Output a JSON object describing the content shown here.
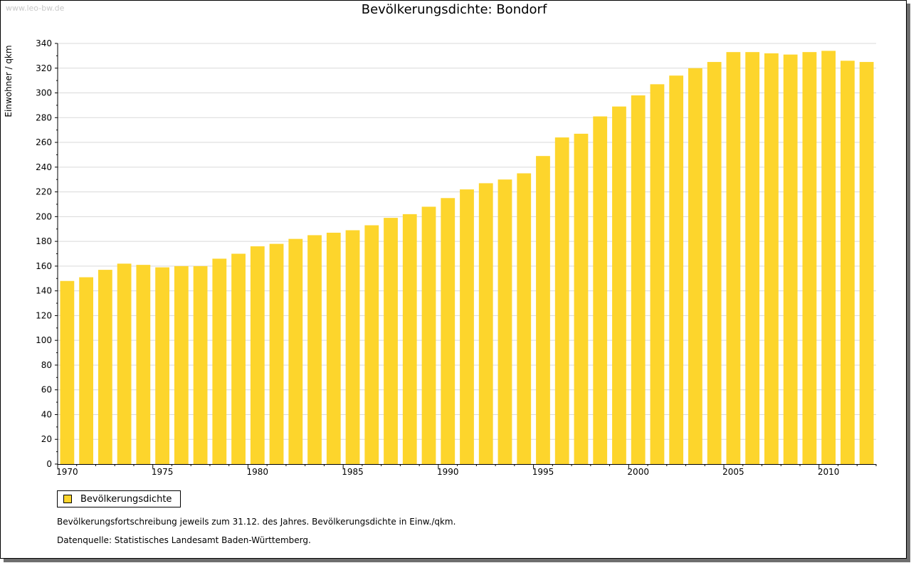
{
  "watermark": "www.leo-bw.de",
  "legend": {
    "label": "Bevölkerungsdichte"
  },
  "notes": [
    "Bevölkerungsfortschreibung jeweils zum 31.12. des Jahres. Bevölkerungsdichte in Einw./qkm.",
    "Datenquelle: Statistisches Landesamt Baden-Württemberg."
  ],
  "chart_data": {
    "type": "bar",
    "title": "Bevölkerungsdichte: Bondorf",
    "xlabel": "",
    "ylabel": "Einwohner / qkm",
    "ylim": [
      0,
      340
    ],
    "yticks": [
      0,
      20,
      40,
      60,
      80,
      100,
      120,
      140,
      160,
      180,
      200,
      220,
      240,
      260,
      280,
      300,
      320,
      340
    ],
    "xtick_labels": [
      "1970",
      "1975",
      "1980",
      "1985",
      "1990",
      "1995",
      "2000",
      "2005",
      "2010"
    ],
    "categories": [
      1970,
      1971,
      1972,
      1973,
      1974,
      1975,
      1976,
      1977,
      1978,
      1979,
      1980,
      1981,
      1982,
      1983,
      1984,
      1985,
      1986,
      1987,
      1988,
      1989,
      1990,
      1991,
      1992,
      1993,
      1994,
      1995,
      1996,
      1997,
      1998,
      1999,
      2000,
      2001,
      2002,
      2003,
      2004,
      2005,
      2006,
      2007,
      2008,
      2009,
      2010,
      2011,
      2012
    ],
    "series": [
      {
        "name": "Bevölkerungsdichte",
        "color": "#fdd52c",
        "values": [
          148,
          151,
          157,
          162,
          161,
          159,
          160,
          160,
          166,
          170,
          176,
          178,
          182,
          185,
          187,
          189,
          193,
          199,
          202,
          208,
          215,
          222,
          227,
          230,
          235,
          249,
          264,
          267,
          281,
          289,
          298,
          307,
          314,
          320,
          325,
          333,
          333,
          332,
          331,
          333,
          334,
          326,
          325
        ]
      }
    ],
    "grid": true,
    "legend_position": "bottom-left"
  }
}
